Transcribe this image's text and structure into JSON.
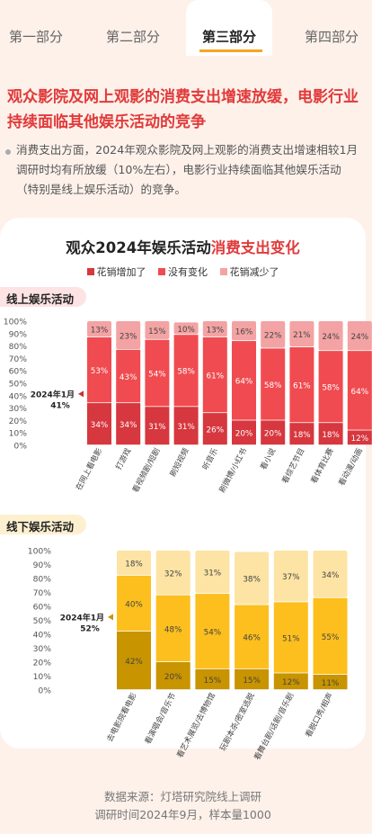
{
  "tabs": [
    {
      "label": "第一部分",
      "active": false
    },
    {
      "label": "第二部分",
      "active": false
    },
    {
      "label": "第三部分",
      "active": true
    },
    {
      "label": "第四部分",
      "active": false
    }
  ],
  "headline": "观众影院及网上观影的消费支出增速放缓，电影行业持续面临其他娱乐活动的竞争",
  "bullet": "消费支出方面，2024年观众影院及网上观影的消费支出增速相较1月调研时均有所放缓（10%左右），电影行业持续面临其他娱乐活动（特别是线上娱乐活动）的竞争。",
  "chart_heading": {
    "main": "观众2024年娱乐活动",
    "highlight": "消费支出变化"
  },
  "legend": [
    {
      "label": "花销增加了",
      "color": "#d7373e"
    },
    {
      "label": "没有变化",
      "color": "#f04b50"
    },
    {
      "label": "花销减少了",
      "color": "#f3a3a4"
    }
  ],
  "source_lines": [
    "数据来源：灯塔研究院线上调研",
    "调研时间2024年9月，样本量1000"
  ],
  "chart_data": [
    {
      "type": "bar",
      "stacked": true,
      "title": "线上娱乐活动",
      "y_ticks": [
        "100%",
        "90%",
        "80%",
        "70%",
        "60%",
        "50%",
        "40%",
        "30%",
        "20%",
        "10%",
        "0%"
      ],
      "ylim": [
        0,
        100
      ],
      "categories": [
        "在网上看电影",
        "打游戏",
        "看视频剧/短剧",
        "刷短视频",
        "听音乐",
        "刷微博/小红书",
        "看小说",
        "看综艺节目",
        "看体育比赛",
        "看动漫/动画"
      ],
      "series": [
        {
          "name": "花销增加了",
          "color": "#d7373e",
          "values": [
            34,
            34,
            31,
            31,
            26,
            20,
            20,
            18,
            18,
            12
          ]
        },
        {
          "name": "没有变化",
          "color": "#f04b50",
          "values": [
            53,
            43,
            54,
            58,
            61,
            64,
            58,
            61,
            58,
            64
          ]
        },
        {
          "name": "花销减少了",
          "color": "#f3a3a4",
          "values": [
            13,
            23,
            15,
            10,
            13,
            16,
            22,
            21,
            24,
            24
          ]
        }
      ],
      "annotation": {
        "lines": [
          "2024年1月",
          "41%"
        ],
        "value": 41,
        "category_index": 0
      }
    },
    {
      "type": "bar",
      "stacked": true,
      "title": "线下娱乐活动",
      "y_ticks": [
        "100%",
        "90%",
        "80%",
        "70%",
        "60%",
        "50%",
        "40%",
        "30%",
        "20%",
        "10%",
        "0%"
      ],
      "ylim": [
        0,
        100
      ],
      "categories": [
        "去电影院看电影",
        "看演唱会/音乐节",
        "看艺术展览/去博物馆",
        "玩剧本杀/密室逃脱",
        "看舞台剧/话剧/音乐剧",
        "看脱口秀/相声"
      ],
      "series": [
        {
          "name": "花销增加了",
          "color": "#c89400",
          "values": [
            42,
            20,
            15,
            15,
            12,
            11
          ]
        },
        {
          "name": "没有变化",
          "color": "#fcbf1e",
          "values": [
            40,
            48,
            54,
            46,
            51,
            55
          ]
        },
        {
          "name": "花销减少了",
          "color": "#fde4a4",
          "values": [
            18,
            32,
            31,
            38,
            37,
            34
          ]
        }
      ],
      "annotation": {
        "lines": [
          "2024年1月",
          "52%"
        ],
        "value": 52,
        "category_index": 0
      }
    }
  ]
}
